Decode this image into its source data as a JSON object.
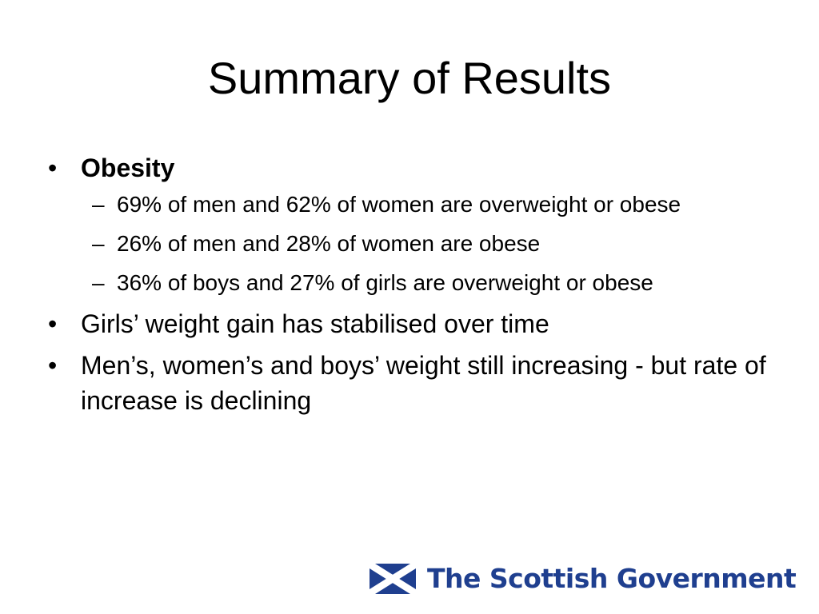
{
  "slide": {
    "title": "Summary of Results",
    "bullets": [
      {
        "text": "Obesity",
        "sub": [
          "69% of men and 62% of women are overweight or obese",
          "26% of men and 28% of women are obese",
          "36% of boys and 27% of girls are overweight or obese"
        ]
      },
      {
        "text": "Girls’ weight gain has stabilised over time"
      },
      {
        "text": "Men’s, women’s and boys’ weight still increasing - but rate of increase is declining"
      }
    ],
    "bullet_char": "•",
    "dash_char": "–"
  },
  "logo": {
    "text": "The Scottish Government",
    "icon": "saltire-flag-icon",
    "brand_color": "#1f3f8f"
  }
}
